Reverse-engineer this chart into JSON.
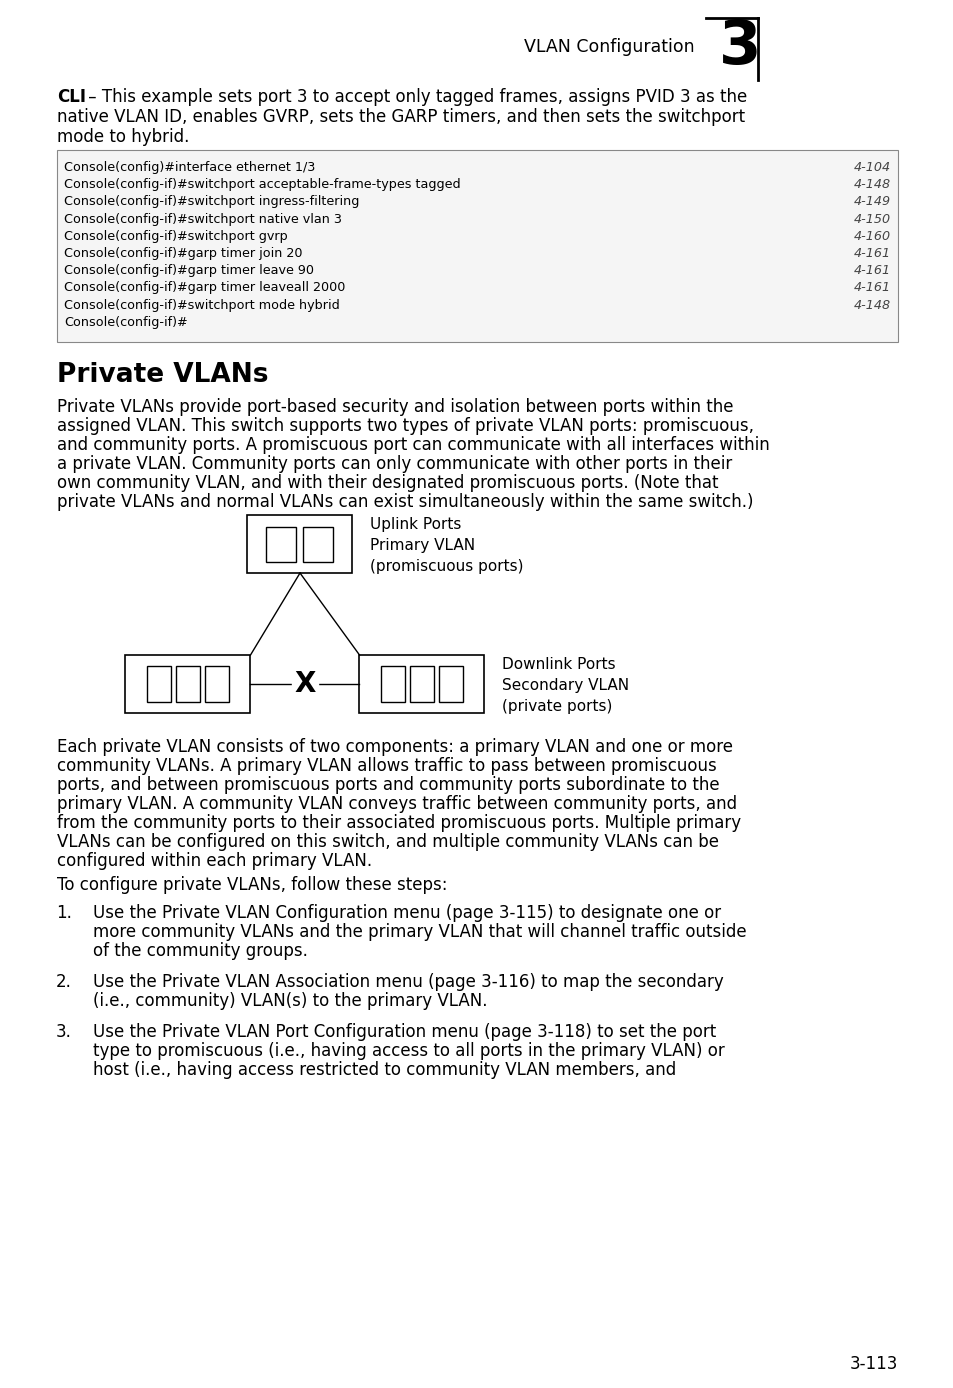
{
  "bg_color": "#ffffff",
  "header_text": "VLAN Configuration",
  "header_number": "3",
  "code_lines": [
    [
      "Console(config)#interface ethernet 1/3",
      "4-104"
    ],
    [
      "Console(config-if)#switchport acceptable-frame-types tagged",
      "4-148"
    ],
    [
      "Console(config-if)#switchport ingress-filtering",
      "4-149"
    ],
    [
      "Console(config-if)#switchport native vlan 3",
      "4-150"
    ],
    [
      "Console(config-if)#switchport gvrp",
      "4-160"
    ],
    [
      "Console(config-if)#garp timer join 20",
      "4-161"
    ],
    [
      "Console(config-if)#garp timer leave 90",
      "4-161"
    ],
    [
      "Console(config-if)#garp timer leaveall 2000",
      "4-161"
    ],
    [
      "Console(config-if)#switchport mode hybrid",
      "4-148"
    ],
    [
      "Console(config-if)#",
      ""
    ]
  ],
  "section_title": "Private VLANs",
  "uplink_label": "Uplink Ports\nPrimary VLAN\n(promiscuous ports)",
  "downlink_label": "Downlink Ports\nSecondary VLAN\n(private ports)",
  "page_number": "3-113",
  "para1_lines": [
    "Private VLANs provide port-based security and isolation between ports within the",
    "assigned VLAN. This switch supports two types of private VLAN ports: promiscuous,",
    "and community ports. A promiscuous port can communicate with all interfaces within",
    "a private VLAN. Community ports can only communicate with other ports in their",
    "own community VLAN, and with their designated promiscuous ports. (Note that",
    "private VLANs and normal VLANs can exist simultaneously within the same switch.)"
  ],
  "para2_lines": [
    "Each private VLAN consists of two components: a primary VLAN and one or more",
    "community VLANs. A primary VLAN allows traffic to pass between promiscuous",
    "ports, and between promiscuous ports and community ports subordinate to the",
    "primary VLAN. A community VLAN conveys traffic between community ports, and",
    "from the community ports to their associated promiscuous ports. Multiple primary",
    "VLANs can be configured on this switch, and multiple community VLANs can be",
    "configured within each primary VLAN."
  ],
  "steps_intro": "To configure private VLANs, follow these steps:",
  "step1_lines": [
    "Use the Private VLAN Configuration menu (page 3-115) to designate one or",
    "more community VLANs and the primary VLAN that will channel traffic outside",
    "of the community groups."
  ],
  "step2_lines": [
    "Use the Private VLAN Association menu (page 3-116) to map the secondary",
    "(i.e., community) VLAN(s) to the primary VLAN."
  ],
  "step3_lines": [
    "Use the Private VLAN Port Configuration menu (page 3-118) to set the port",
    "type to promiscuous (i.e., having access to all ports in the primary VLAN) or",
    "host (i.e., having access restricted to community VLAN members, and"
  ],
  "cli_line1_bold": "CLI",
  "cli_line1_rest": " – This example sets port 3 to accept only tagged frames, assigns PVID 3 as the",
  "cli_line2": "native VLAN ID, enables GVRP, sets the GARP timers, and then sets the switchport",
  "cli_line3": "mode to hybrid."
}
